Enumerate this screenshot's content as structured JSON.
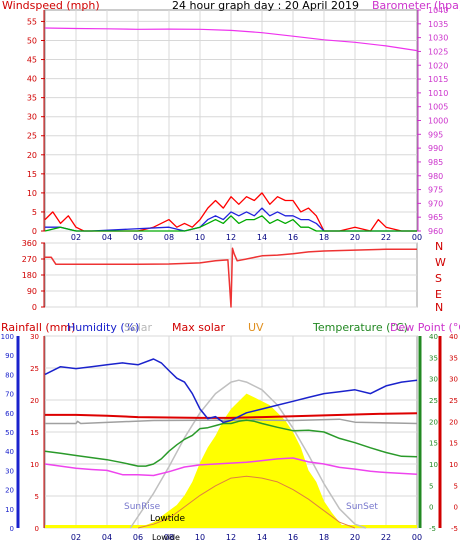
{
  "header": {
    "left_label": "Windspeed (mph)",
    "title": "24 hour graph day : 20 April 2019",
    "right_label": "Barometer (hpa)"
  },
  "colors": {
    "background": "#ffffff",
    "plot_background": "#ffffff",
    "grid": "#d8d8d8",
    "axis": "#000000",
    "wind_avg": "#00aa00",
    "wind_mid": "#2222dd",
    "wind_gust": "#ff0000",
    "barometer": "#ee33ee",
    "direction": "#ee3333",
    "rain": "#ff0000",
    "humidity": "#1a22cc",
    "solar": "#c8c8c8",
    "max_solar": "#c0c0c0",
    "uv": "#ffff00",
    "temperature": "#2a9a2a",
    "dewpoint": "#ee44ee",
    "temp_ref_red": "#dd0000",
    "solar_orange": "#e08040"
  },
  "chart_data": [
    {
      "type": "line",
      "panel": "wind-barometer",
      "title": "24 hour graph day : 20 April 2019",
      "ylabel_left": "Windspeed (mph)",
      "ylabel_right": "Barometer (hpa)",
      "ylim_left": [
        0,
        58
      ],
      "ylim_right": [
        960,
        1040
      ],
      "left_ticks": [
        "0",
        "5",
        "10",
        "15",
        "20",
        "25",
        "30",
        "35",
        "40",
        "45",
        "50",
        "55"
      ],
      "right_ticks": [
        "960",
        "965",
        "970",
        "975",
        "980",
        "985",
        "990",
        "995",
        "1000",
        "1005",
        "1010",
        "1015",
        "1020",
        "1025",
        "1030",
        "1035",
        "1040"
      ],
      "x_ticks": [
        "02",
        "04",
        "06",
        "08",
        "10",
        "12",
        "14",
        "16",
        "18",
        "20",
        "22",
        "00"
      ],
      "x_range_hours": [
        0,
        24
      ],
      "series": [
        {
          "name": "Barometer",
          "axis": "right",
          "x": [
            0,
            2,
            4,
            6,
            8,
            10,
            12,
            13,
            14,
            16,
            18,
            20,
            22,
            24
          ],
          "y": [
            1033.5,
            1033.3,
            1033.2,
            1033.0,
            1033.1,
            1033.0,
            1032.6,
            1032.2,
            1031.8,
            1030.5,
            1029.2,
            1028.3,
            1027.0,
            1025.3
          ]
        },
        {
          "name": "Wind gust",
          "axis": "left",
          "x": [
            0,
            0.5,
            1,
            1.5,
            2,
            2.5,
            3,
            5,
            6,
            7,
            8,
            8.5,
            9,
            9.5,
            10,
            10.5,
            11,
            11.5,
            12,
            12.5,
            13,
            13.5,
            14,
            14.5,
            15,
            15.5,
            16,
            16.5,
            17,
            17.5,
            18,
            19,
            20,
            21,
            21.5,
            22,
            23,
            24
          ],
          "y": [
            3,
            5,
            2,
            4,
            1,
            0,
            0,
            0,
            0,
            1,
            3,
            1,
            2,
            1,
            3,
            6,
            8,
            6,
            9,
            7,
            9,
            8,
            10,
            7,
            9,
            8,
            8,
            5,
            6,
            4,
            0,
            0,
            1,
            0,
            3,
            1,
            0,
            0
          ]
        },
        {
          "name": "Wind mid",
          "axis": "left",
          "x": [
            0,
            1,
            2,
            3,
            8,
            9,
            10,
            10.5,
            11,
            11.5,
            12,
            12.5,
            13,
            13.5,
            14,
            14.5,
            15,
            15.5,
            16,
            16.5,
            17,
            17.5,
            18,
            24
          ],
          "y": [
            1,
            1,
            0,
            0,
            1,
            0,
            1,
            3,
            4,
            3,
            5,
            4,
            5,
            4,
            6,
            4,
            5,
            4,
            4,
            3,
            3,
            2,
            0,
            0
          ]
        },
        {
          "name": "Wind average",
          "axis": "left",
          "x": [
            0,
            1,
            2,
            3,
            8,
            9,
            10,
            10.5,
            11,
            11.5,
            12,
            12.5,
            13,
            13.5,
            14,
            14.5,
            15,
            15.5,
            16,
            16.5,
            17,
            17.5,
            18,
            24
          ],
          "y": [
            0,
            1,
            0,
            0,
            0,
            0,
            1,
            2,
            3,
            2,
            4,
            2,
            3,
            3,
            4,
            2,
            3,
            2,
            3,
            1,
            1,
            0,
            0,
            0
          ]
        }
      ]
    },
    {
      "type": "line",
      "panel": "wind-direction",
      "ylim_left": [
        0,
        360
      ],
      "left_ticks": [
        "0",
        "90",
        "180",
        "270",
        "360"
      ],
      "right_labels": [
        "N",
        "W",
        "S",
        "E",
        "N"
      ],
      "x_range_hours": [
        0,
        24
      ],
      "series": [
        {
          "name": "Wind direction",
          "x": [
            0,
            0.4,
            0.7,
            2,
            4,
            6,
            8,
            10,
            11,
            11.8,
            12.0,
            12.1,
            12.2,
            12.4,
            13,
            14,
            15,
            16,
            17,
            18,
            20,
            22,
            24
          ],
          "y": [
            280,
            280,
            240,
            240,
            240,
            240,
            242,
            248,
            260,
            265,
            0,
            330,
            300,
            260,
            270,
            288,
            292,
            300,
            310,
            315,
            320,
            325,
            325
          ]
        }
      ]
    },
    {
      "type": "area",
      "panel": "rain-humidity-solar-temperature",
      "legend": [
        "Rainfall (mm)",
        "Humidity (%)",
        "Solar",
        "Max solar",
        "UV",
        "Temperature (°C)",
        "Dew Point (°C)"
      ],
      "humidity_axis": {
        "ylim": [
          0,
          100
        ],
        "ticks": [
          "0",
          "10",
          "20",
          "30",
          "40",
          "50",
          "60",
          "70",
          "80",
          "90",
          "100"
        ]
      },
      "rain_axis": {
        "ylim": [
          0,
          30
        ],
        "ticks": [
          "0",
          "5",
          "10",
          "15",
          "20",
          "25",
          "30"
        ]
      },
      "temperature_axis": {
        "ylim": [
          -5,
          40
        ],
        "ticks": [
          "-5",
          "0",
          "5",
          "10",
          "15",
          "20",
          "25",
          "30",
          "35",
          "40"
        ]
      },
      "x_ticks": [
        "02",
        "04",
        "06",
        "08",
        "10",
        "12",
        "14",
        "16",
        "18",
        "20",
        "22",
        "00"
      ],
      "x_range_hours": [
        0,
        24
      ],
      "sun_labels": {
        "sunrise": "SunRise",
        "sunset": "SunSet",
        "lowtide": "Lowtide",
        "lowide": "Lowide"
      },
      "series": [
        {
          "name": "Humidity",
          "axis": "humidity",
          "x": [
            0,
            1,
            2,
            3,
            4,
            5,
            6,
            7,
            7.5,
            8,
            8.5,
            9,
            9.5,
            10,
            10.5,
            11,
            11.5,
            12,
            12.5,
            13,
            14,
            15,
            16,
            17,
            18,
            19,
            20,
            21,
            22,
            23,
            24
          ],
          "y": [
            80,
            84,
            83,
            84,
            85,
            86,
            85,
            88,
            86,
            82,
            78,
            76,
            70,
            62,
            57,
            58,
            55,
            56,
            58,
            60,
            62,
            64,
            66,
            68,
            70,
            71,
            72,
            70,
            74,
            76,
            77
          ]
        },
        {
          "name": "Max solar",
          "axis": "humidity",
          "x": [
            5.5,
            6,
            7,
            8,
            9,
            10,
            11,
            12,
            12.5,
            13,
            14,
            15,
            16,
            17,
            18,
            19,
            20,
            20.7
          ],
          "y": [
            0,
            6,
            18,
            32,
            47,
            60,
            70,
            76,
            77,
            76,
            72,
            64,
            52,
            38,
            23,
            10,
            2,
            0
          ]
        },
        {
          "name": "Solar",
          "axis": "humidity",
          "x": [
            6,
            7,
            8,
            8.5,
            9,
            9.5,
            10,
            10.5,
            11,
            11.5,
            12,
            12.5,
            13,
            13.5,
            14,
            14.5,
            15,
            15.5,
            16,
            16.5,
            17,
            17.5,
            18,
            18.5,
            19,
            19.3
          ],
          "y": [
            0,
            3,
            9,
            12,
            17,
            24,
            34,
            42,
            48,
            56,
            62,
            66,
            70,
            68,
            66,
            64,
            60,
            56,
            50,
            42,
            30,
            24,
            14,
            8,
            3,
            0
          ]
        },
        {
          "name": "Temperature",
          "axis": "temperature",
          "x": [
            0,
            1,
            2,
            3,
            4,
            5,
            6,
            6.5,
            7,
            7.5,
            8,
            8.5,
            9,
            9.5,
            10,
            10.5,
            11,
            11.5,
            12,
            12.5,
            13,
            13.5,
            14,
            15,
            16,
            17,
            18,
            19,
            20,
            21,
            22,
            23,
            24
          ],
          "y": [
            13,
            12.5,
            12,
            11.5,
            11,
            10.3,
            9.5,
            9.5,
            10,
            11.2,
            13,
            14.5,
            15.8,
            16.7,
            18.3,
            18.5,
            19,
            19.5,
            19.5,
            20,
            20.3,
            20,
            19.5,
            18.6,
            17.8,
            17.9,
            17.5,
            16,
            15,
            13.8,
            12.7,
            11.8,
            11.7
          ]
        },
        {
          "name": "Dew Point",
          "axis": "temperature",
          "x": [
            0,
            1,
            2,
            3,
            4,
            5,
            6,
            7,
            8,
            9,
            10,
            11,
            12,
            13,
            14,
            15,
            16,
            17,
            18,
            19,
            20,
            21,
            22,
            23,
            24
          ],
          "y": [
            10,
            9.5,
            9,
            8.7,
            8.5,
            7.5,
            7.5,
            7.3,
            8.2,
            9.3,
            9.8,
            10,
            10.2,
            10.4,
            10.8,
            11.2,
            11.4,
            10.5,
            10,
            9.2,
            8.8,
            8.3,
            8,
            7.8,
            7.6
          ]
        },
        {
          "name": "Temperature ref",
          "axis": "temperature",
          "x": [
            0,
            2,
            4,
            6,
            8,
            10,
            12,
            14,
            16,
            18,
            20,
            22,
            24
          ],
          "y": [
            21.5,
            21.5,
            21.3,
            21.0,
            20.9,
            20.8,
            20.8,
            21.0,
            21.2,
            21.4,
            21.6,
            21.8,
            21.9
          ]
        },
        {
          "name": "Grey ref",
          "axis": "temperature",
          "x": [
            0,
            1.5,
            2,
            2.1,
            2.3,
            7,
            12,
            13,
            13.5,
            14,
            16,
            19,
            20,
            24
          ],
          "y": [
            19.5,
            19.5,
            19.5,
            20,
            19.5,
            20.2,
            20.3,
            20.2,
            20.4,
            20.3,
            20.2,
            20.5,
            19.8,
            19.5
          ]
        },
        {
          "name": "Solar curve",
          "axis": "humidity",
          "x": [
            6,
            7,
            8,
            9,
            10,
            11,
            12,
            13,
            14,
            15,
            16,
            17,
            18,
            19,
            20
          ],
          "y": [
            0,
            2,
            5,
            11,
            17,
            22,
            26,
            27,
            26,
            24,
            20,
            15,
            9,
            3,
            0
          ]
        }
      ]
    }
  ]
}
